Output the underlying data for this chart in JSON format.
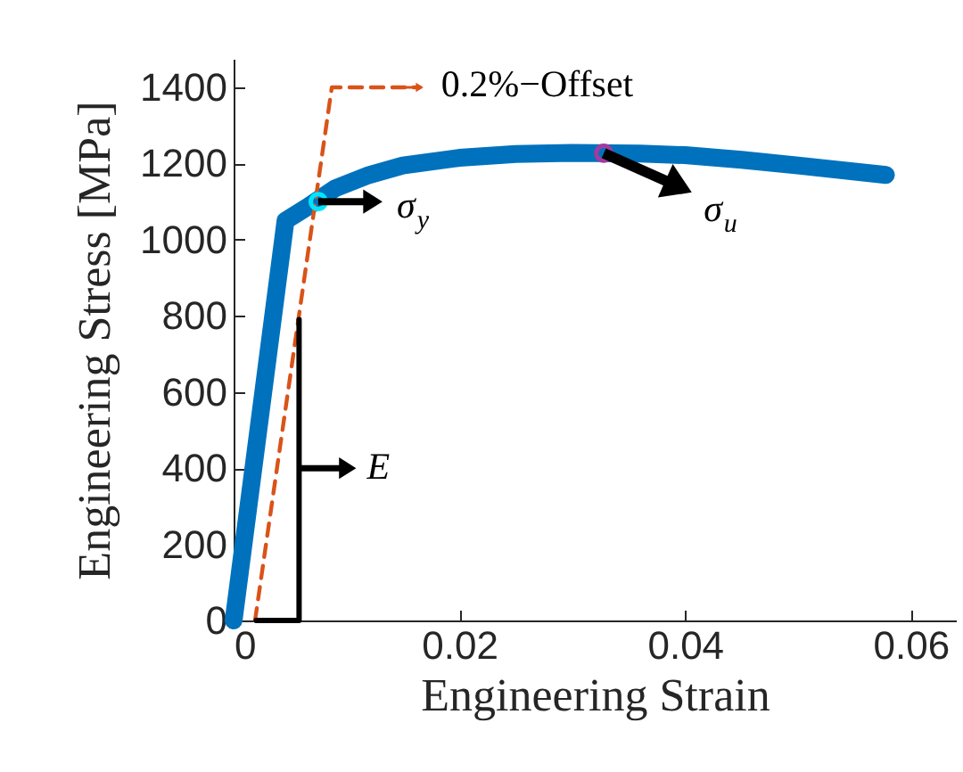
{
  "chart_data": {
    "type": "line",
    "xlabel": "Engineering Strain",
    "ylabel": "Engineering Stress [MPa]",
    "xlim": [
      0,
      0.064
    ],
    "ylim": [
      0,
      1475
    ],
    "xticks": [
      0,
      0.02,
      0.04,
      0.06
    ],
    "yticks": [
      0,
      200,
      400,
      600,
      800,
      1000,
      1200,
      1400
    ],
    "grid": false,
    "series": [
      {
        "color": "#0072bd",
        "x": [
          0,
          0.0046,
          0.0065,
          0.009,
          0.012,
          0.015,
          0.02,
          0.025,
          0.03,
          0.036,
          0.04,
          0.045,
          0.05,
          0.0578
        ],
        "values": [
          0,
          1050,
          1085,
          1135,
          1170,
          1195,
          1215,
          1225,
          1228,
          1226,
          1222,
          1210,
          1195,
          1170
        ]
      },
      {
        "color": "#d95319",
        "line_style": "dashed",
        "x": [
          0.0019,
          0.0087,
          0.0165
        ],
        "values": [
          0,
          1400,
          1400
        ]
      },
      {
        "color": "#000000",
        "x": [
          0.002,
          0.0058,
          0.0058
        ],
        "values": [
          0,
          0,
          790
        ]
      },
      {
        "type": "scatter",
        "color": "#00e5ff",
        "marker": "circle",
        "x": [
          0.0075
        ],
        "values": [
          1100
        ]
      },
      {
        "type": "scatter",
        "color": "#a03ca0",
        "marker": "circle",
        "x": [
          0.0328
        ],
        "values": [
          1227
        ]
      }
    ],
    "annotations": [
      {
        "text": "0.2%−Offset",
        "x": 0.0165,
        "y": 1400
      },
      {
        "text": "σ$_{y}$",
        "x": 0.0075,
        "y": 1100
      },
      {
        "text": "σ$_{u}$",
        "x": 0.0328,
        "y": 1227
      },
      {
        "text": "E",
        "x": 0.0058,
        "y": 400
      }
    ]
  }
}
